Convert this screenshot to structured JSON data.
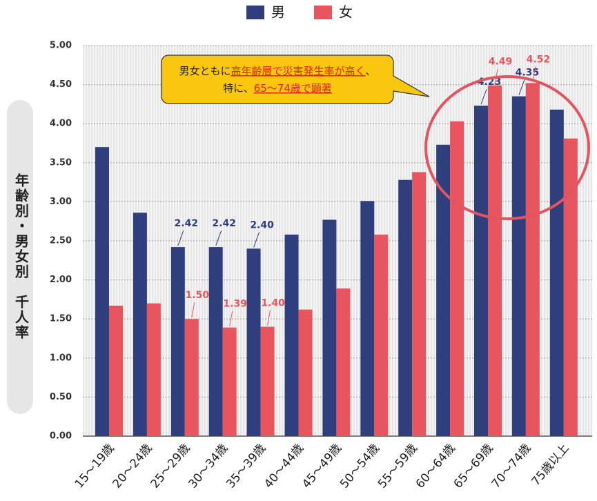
{
  "chart_data": {
    "type": "bar",
    "categories": [
      "15〜19歳",
      "20〜24歳",
      "25〜29歳",
      "30〜34歳",
      "35〜39歳",
      "40〜44歳",
      "45〜49歳",
      "50〜54歳",
      "55〜59歳",
      "60〜64歳",
      "65〜69歳",
      "70〜74歳",
      "75歳以上"
    ],
    "series": [
      {
        "name": "男",
        "color": "#2f3f7d",
        "values": [
          3.7,
          2.86,
          2.42,
          2.42,
          2.4,
          2.58,
          2.77,
          3.01,
          3.28,
          3.73,
          4.23,
          4.35,
          4.18
        ],
        "value_labels": [
          null,
          null,
          "2.42",
          "2.42",
          "2.40",
          null,
          null,
          null,
          null,
          null,
          "4.23",
          "4.35",
          null
        ]
      },
      {
        "name": "女",
        "color": "#e8555f",
        "values": [
          1.67,
          1.7,
          1.5,
          1.39,
          1.4,
          1.62,
          1.89,
          2.58,
          3.38,
          4.03,
          4.49,
          4.52,
          3.81
        ],
        "value_labels": [
          null,
          null,
          "1.50",
          "1.39",
          "1.40",
          null,
          null,
          null,
          null,
          null,
          "4.49",
          "4.52",
          null
        ]
      }
    ],
    "ylabel": "年齢別・男女別　千人率",
    "ylim": [
      0,
      5
    ],
    "yticks": [
      {
        "value": 0,
        "label": "0.00"
      },
      {
        "value": 0.5,
        "label": "0.50"
      },
      {
        "value": 1,
        "label": "1.00"
      },
      {
        "value": 1.5,
        "label": "1.50"
      },
      {
        "value": 2,
        "label": "2.00"
      },
      {
        "value": 2.5,
        "label": "2.50"
      },
      {
        "value": 3,
        "label": "3.00"
      },
      {
        "value": 3.5,
        "label": "3.50"
      },
      {
        "value": 4,
        "label": "4.00"
      },
      {
        "value": 4.5,
        "label": "4.50"
      },
      {
        "value": 5,
        "label": "5.00"
      }
    ],
    "grid": true,
    "legend": "top",
    "annotation": [
      [
        "男女ともに",
        "高年齢層で災害発生率が高く",
        "、"
      ],
      [
        "特に、",
        "65〜74歳で顕著"
      ]
    ]
  }
}
